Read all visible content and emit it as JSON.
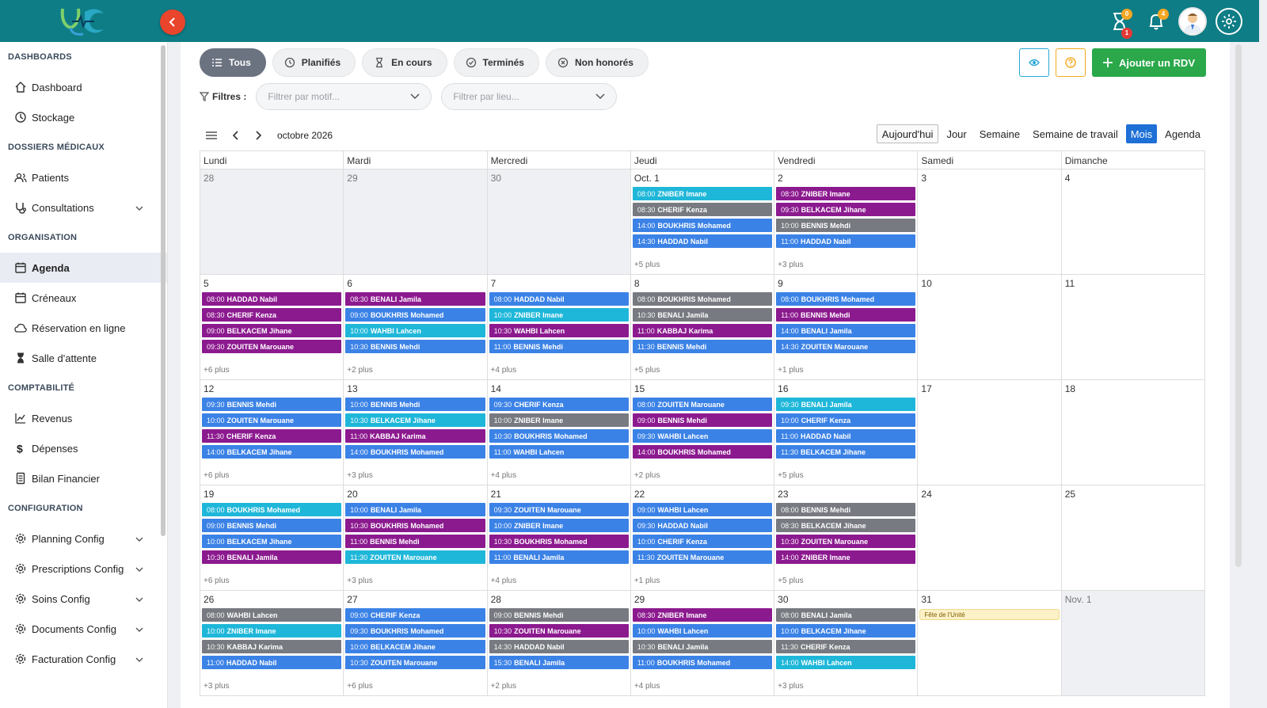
{
  "colors": {
    "topbar": "#0e7d86",
    "blue": "#3b82e6",
    "cyan": "#1fb7d9",
    "purple": "#8c1a8f",
    "gray": "#777a80",
    "green": "#2aa84a"
  },
  "topbar": {
    "hourglass_badge_top": "0",
    "hourglass_badge_bottom": "1",
    "bell_badge": "4"
  },
  "sidebar": {
    "sections": [
      {
        "title": "DASHBOARDS",
        "items": [
          {
            "label": "Dashboard",
            "icon": "home-icon"
          },
          {
            "label": "Stockage",
            "icon": "history-icon"
          }
        ]
      },
      {
        "title": "DOSSIERS MÉDICAUX",
        "items": [
          {
            "label": "Patients",
            "icon": "users-icon"
          },
          {
            "label": "Consultations",
            "icon": "stethoscope-icon",
            "expand": true
          }
        ]
      },
      {
        "title": "ORGANISATION",
        "items": [
          {
            "label": "Agenda",
            "icon": "calendar-icon",
            "active": true
          },
          {
            "label": "Créneaux",
            "icon": "calendar-icon"
          },
          {
            "label": "Réservation en ligne",
            "icon": "cloud-icon"
          },
          {
            "label": "Salle d'attente",
            "icon": "hourglass-icon"
          }
        ]
      },
      {
        "title": "COMPTABILITÉ",
        "items": [
          {
            "label": "Revenus",
            "icon": "chart-line-icon"
          },
          {
            "label": "Dépenses",
            "icon": "dollar-icon"
          },
          {
            "label": "Bilan Financier",
            "icon": "receipt-icon"
          }
        ]
      },
      {
        "title": "CONFIGURATION",
        "items": [
          {
            "label": "Planning Config",
            "icon": "gear-icon",
            "expand": true
          },
          {
            "label": "Prescriptions Config",
            "icon": "gear-icon",
            "expand": true
          },
          {
            "label": "Soins Config",
            "icon": "gear-icon",
            "expand": true
          },
          {
            "label": "Documents Config",
            "icon": "gear-icon",
            "expand": true
          },
          {
            "label": "Facturation Config",
            "icon": "gear-icon",
            "expand": true
          }
        ]
      }
    ]
  },
  "status_filters": [
    {
      "label": "Tous",
      "icon": "list-icon",
      "active": true
    },
    {
      "label": "Planifiés",
      "icon": "clock-icon"
    },
    {
      "label": "En cours",
      "icon": "hourglass-icon"
    },
    {
      "label": "Terminés",
      "icon": "check-circle-icon"
    },
    {
      "label": "Non honorés",
      "icon": "x-circle-icon"
    }
  ],
  "actions": {
    "add_label": "Ajouter un RDV"
  },
  "filters": {
    "label": "Filtres :",
    "motif_placeholder": "Filtrer par motif...",
    "lieu_placeholder": "Filtrer par lieu..."
  },
  "calendar": {
    "month_label": "octobre 2026",
    "views": [
      "Aujourd'hui",
      "Jour",
      "Semaine",
      "Semaine de travail",
      "Mois",
      "Agenda"
    ],
    "active_view": "Mois",
    "weekdays": [
      "Lundi",
      "Mardi",
      "Mercredi",
      "Jeudi",
      "Vendredi",
      "Samedi",
      "Dimanche"
    ],
    "weeks": [
      [
        {
          "num": "28",
          "off": true,
          "events": []
        },
        {
          "num": "29",
          "off": true,
          "events": []
        },
        {
          "num": "30",
          "off": true,
          "events": []
        },
        {
          "num": "Oct. 1",
          "events": [
            [
              "08:00",
              "ZNIBER Imane",
              "cyan"
            ],
            [
              "08:30",
              "CHERIF Kenza",
              "gray"
            ],
            [
              "14:00",
              "BOUKHRIS Mohamed",
              "blue"
            ],
            [
              "14:30",
              "HADDAD Nabil",
              "blue"
            ]
          ],
          "more": "+5 plus"
        },
        {
          "num": "2",
          "events": [
            [
              "08:30",
              "ZNIBER Imane",
              "purple"
            ],
            [
              "09:30",
              "BELKACEM Jihane",
              "purple"
            ],
            [
              "10:00",
              "BENNIS Mehdi",
              "gray"
            ],
            [
              "11:00",
              "HADDAD Nabil",
              "blue"
            ]
          ],
          "more": "+3 plus"
        },
        {
          "num": "3",
          "events": []
        },
        {
          "num": "4",
          "events": []
        }
      ],
      [
        {
          "num": "5",
          "events": [
            [
              "08:00",
              "HADDAD Nabil",
              "purple"
            ],
            [
              "08:30",
              "CHERIF Kenza",
              "purple"
            ],
            [
              "09:00",
              "BELKACEM Jihane",
              "purple"
            ],
            [
              "09:30",
              "ZOUITEN Marouane",
              "purple"
            ]
          ],
          "more": "+6 plus"
        },
        {
          "num": "6",
          "events": [
            [
              "08:30",
              "BENALI Jamila",
              "purple"
            ],
            [
              "09:00",
              "BOUKHRIS Mohamed",
              "blue"
            ],
            [
              "10:00",
              "WAHBI Lahcen",
              "cyan"
            ],
            [
              "10:30",
              "BENNIS Mehdi",
              "blue"
            ]
          ],
          "more": "+2 plus"
        },
        {
          "num": "7",
          "events": [
            [
              "08:00",
              "HADDAD Nabil",
              "blue"
            ],
            [
              "10:00",
              "ZNIBER Imane",
              "cyan"
            ],
            [
              "10:30",
              "WAHBI Lahcen",
              "purple"
            ],
            [
              "11:00",
              "BENNIS Mehdi",
              "blue"
            ]
          ],
          "more": "+4 plus"
        },
        {
          "num": "8",
          "events": [
            [
              "08:00",
              "BOUKHRIS Mohamed",
              "gray"
            ],
            [
              "10:30",
              "BENALI Jamila",
              "gray"
            ],
            [
              "11:00",
              "KABBAJ Karima",
              "purple"
            ],
            [
              "11:30",
              "BENNIS Mehdi",
              "blue"
            ]
          ],
          "more": "+5 plus"
        },
        {
          "num": "9",
          "events": [
            [
              "08:00",
              "BOUKHRIS Mohamed",
              "blue"
            ],
            [
              "11:00",
              "BENNIS Mehdi",
              "purple"
            ],
            [
              "14:00",
              "BENALI Jamila",
              "blue"
            ],
            [
              "14:30",
              "ZOUITEN Marouane",
              "blue"
            ]
          ],
          "more": "+1 plus"
        },
        {
          "num": "10",
          "events": []
        },
        {
          "num": "11",
          "events": []
        }
      ],
      [
        {
          "num": "12",
          "events": [
            [
              "09:30",
              "BENNIS Mehdi",
              "blue"
            ],
            [
              "10:00",
              "ZOUITEN Marouane",
              "blue"
            ],
            [
              "11:30",
              "CHERIF Kenza",
              "purple"
            ],
            [
              "14:00",
              "BELKACEM Jihane",
              "blue"
            ]
          ],
          "more": "+6 plus"
        },
        {
          "num": "13",
          "events": [
            [
              "10:00",
              "BENNIS Mehdi",
              "blue"
            ],
            [
              "10:30",
              "BELKACEM Jihane",
              "cyan"
            ],
            [
              "11:00",
              "KABBAJ Karima",
              "purple"
            ],
            [
              "14:00",
              "BOUKHRIS Mohamed",
              "blue"
            ]
          ],
          "more": "+3 plus"
        },
        {
          "num": "14",
          "events": [
            [
              "09:30",
              "CHERIF Kenza",
              "blue"
            ],
            [
              "10:00",
              "ZNIBER Imane",
              "gray"
            ],
            [
              "10:30",
              "BOUKHRIS Mohamed",
              "blue"
            ],
            [
              "11:00",
              "WAHBI Lahcen",
              "blue"
            ]
          ],
          "more": "+4 plus"
        },
        {
          "num": "15",
          "events": [
            [
              "08:00",
              "ZOUITEN Marouane",
              "blue"
            ],
            [
              "09:00",
              "BENNIS Mehdi",
              "purple"
            ],
            [
              "09:30",
              "WAHBI Lahcen",
              "blue"
            ],
            [
              "14:00",
              "BOUKHRIS Mohamed",
              "purple"
            ]
          ],
          "more": "+2 plus"
        },
        {
          "num": "16",
          "events": [
            [
              "09:30",
              "BENALI Jamila",
              "cyan"
            ],
            [
              "10:00",
              "CHERIF Kenza",
              "blue"
            ],
            [
              "11:00",
              "HADDAD Nabil",
              "blue"
            ],
            [
              "11:30",
              "BELKACEM Jihane",
              "blue"
            ]
          ],
          "more": "+5 plus"
        },
        {
          "num": "17",
          "events": []
        },
        {
          "num": "18",
          "events": []
        }
      ],
      [
        {
          "num": "19",
          "events": [
            [
              "08:00",
              "BOUKHRIS Mohamed",
              "cyan"
            ],
            [
              "09:00",
              "BENNIS Mehdi",
              "blue"
            ],
            [
              "10:00",
              "BELKACEM Jihane",
              "blue"
            ],
            [
              "10:30",
              "BENALI Jamila",
              "purple"
            ]
          ],
          "more": "+6 plus"
        },
        {
          "num": "20",
          "events": [
            [
              "10:00",
              "BENALI Jamila",
              "blue"
            ],
            [
              "10:30",
              "BOUKHRIS Mohamed",
              "purple"
            ],
            [
              "11:00",
              "BENNIS Mehdi",
              "purple"
            ],
            [
              "11:30",
              "ZOUITEN Marouane",
              "cyan"
            ]
          ],
          "more": "+3 plus"
        },
        {
          "num": "21",
          "events": [
            [
              "09:30",
              "ZOUITEN Marouane",
              "blue"
            ],
            [
              "10:00",
              "ZNIBER Imane",
              "blue"
            ],
            [
              "10:30",
              "BOUKHRIS Mohamed",
              "purple"
            ],
            [
              "11:00",
              "BENALI Jamila",
              "blue"
            ]
          ],
          "more": "+4 plus"
        },
        {
          "num": "22",
          "events": [
            [
              "09:00",
              "WAHBI Lahcen",
              "blue"
            ],
            [
              "09:30",
              "HADDAD Nabil",
              "blue"
            ],
            [
              "10:00",
              "CHERIF Kenza",
              "blue"
            ],
            [
              "11:30",
              "ZOUITEN Marouane",
              "blue"
            ]
          ],
          "more": "+1 plus"
        },
        {
          "num": "23",
          "events": [
            [
              "08:00",
              "BENNIS Mehdi",
              "gray"
            ],
            [
              "08:30",
              "BELKACEM Jihane",
              "gray"
            ],
            [
              "10:30",
              "ZOUITEN Marouane",
              "purple"
            ],
            [
              "14:00",
              "ZNIBER Imane",
              "purple"
            ]
          ],
          "more": "+5 plus"
        },
        {
          "num": "24",
          "events": []
        },
        {
          "num": "25",
          "events": []
        }
      ],
      [
        {
          "num": "26",
          "events": [
            [
              "08:00",
              "WAHBI Lahcen",
              "gray"
            ],
            [
              "10:00",
              "ZNIBER Imane",
              "cyan"
            ],
            [
              "10:30",
              "KABBAJ Karima",
              "gray"
            ],
            [
              "11:00",
              "HADDAD Nabil",
              "blue"
            ]
          ],
          "more": "+3 plus"
        },
        {
          "num": "27",
          "events": [
            [
              "09:00",
              "CHERIF Kenza",
              "blue"
            ],
            [
              "09:30",
              "BOUKHRIS Mohamed",
              "blue"
            ],
            [
              "10:00",
              "BELKACEM Jihane",
              "blue"
            ],
            [
              "10:30",
              "ZOUITEN Marouane",
              "blue"
            ]
          ],
          "more": "+6 plus"
        },
        {
          "num": "28",
          "events": [
            [
              "09:00",
              "BENNIS Mehdi",
              "gray"
            ],
            [
              "10:30",
              "ZOUITEN Marouane",
              "purple"
            ],
            [
              "14:30",
              "HADDAD Nabil",
              "gray"
            ],
            [
              "15:30",
              "BENALI Jamila",
              "blue"
            ]
          ],
          "more": "+2 plus"
        },
        {
          "num": "29",
          "events": [
            [
              "08:30",
              "ZNIBER Imane",
              "purple"
            ],
            [
              "10:00",
              "WAHBI Lahcen",
              "blue"
            ],
            [
              "10:30",
              "BENALI Jamila",
              "gray"
            ],
            [
              "11:00",
              "BOUKHRIS Mohamed",
              "blue"
            ]
          ],
          "more": "+4 plus"
        },
        {
          "num": "30",
          "events": [
            [
              "08:00",
              "BENALI Jamila",
              "gray"
            ],
            [
              "10:00",
              "BELKACEM Jihane",
              "blue"
            ],
            [
              "11:30",
              "CHERIF Kenza",
              "gray"
            ],
            [
              "14:00",
              "WAHBI Lahcen",
              "cyan"
            ]
          ],
          "more": "+3 plus"
        },
        {
          "num": "31",
          "events": [],
          "holiday": "Fête de l'Unité"
        },
        {
          "num": "Nov. 1",
          "off": true,
          "events": []
        }
      ]
    ]
  }
}
